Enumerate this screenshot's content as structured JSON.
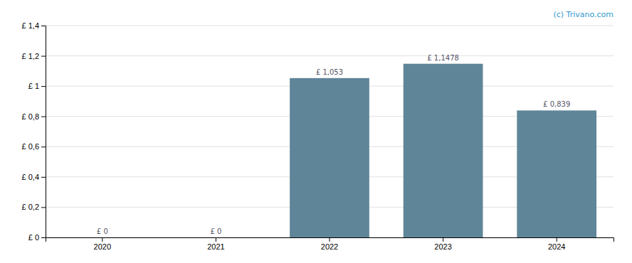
{
  "chart_data": {
    "type": "bar",
    "categories": [
      "2020",
      "2021",
      "2022",
      "2023",
      "2024"
    ],
    "values": [
      0,
      0,
      1.053,
      1.1478,
      0.839
    ],
    "value_labels": [
      "£ 0",
      "£ 0",
      "£ 1,053",
      "£ 1,1478",
      "£ 0,839"
    ],
    "data_labels": true,
    "color": "#5f8598",
    "ylim": [
      0,
      1.4
    ],
    "yticks": [
      {
        "value": 0,
        "label": "£ 0"
      },
      {
        "value": 0.2,
        "label": "£ 0,2"
      },
      {
        "value": 0.4,
        "label": "£ 0,4"
      },
      {
        "value": 0.6,
        "label": "£ 0,6"
      },
      {
        "value": 0.8,
        "label": "£ 0,8"
      },
      {
        "value": 1.0,
        "label": "£ 1"
      },
      {
        "value": 1.2,
        "label": "£ 1,2"
      },
      {
        "value": 1.4,
        "label": "£ 1,4"
      }
    ],
    "grid": true,
    "annotations": [
      "(c) Trivano.com"
    ]
  }
}
